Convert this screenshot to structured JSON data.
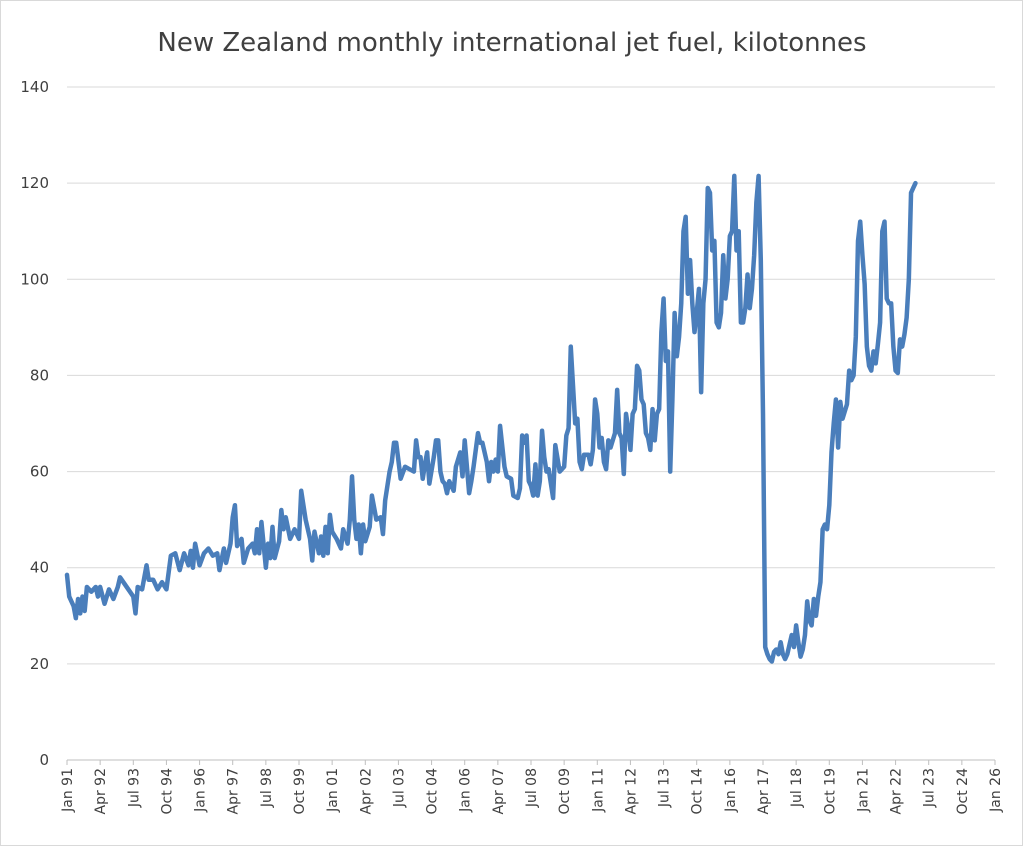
{
  "chart_data": {
    "type": "line",
    "title": "New Zealand monthly international jet fuel, kilotonnes",
    "xlabel": "",
    "ylabel": "",
    "ylim": [
      0,
      140
    ],
    "y_ticks": [
      0,
      20,
      40,
      60,
      80,
      100,
      120,
      140
    ],
    "x_tick_labels": [
      "Jan 91",
      "Apr 92",
      "Jul 93",
      "Oct 94",
      "Jan 96",
      "Apr 97",
      "Jul 98",
      "Oct 99",
      "Jan 01",
      "Apr 02",
      "Jul 03",
      "Oct 04",
      "Jan 06",
      "Apr 07",
      "Jul 08",
      "Oct 09",
      "Jan 11",
      "Apr 12",
      "Jul 13",
      "Oct 14",
      "Jan 16",
      "Apr 17",
      "Jul 18",
      "Oct 19",
      "Jan 21",
      "Apr 22",
      "Jul 23",
      "Oct 24",
      "Jan 26"
    ],
    "x_start": "Jan 91",
    "x_end": "Jan 26",
    "legend": "none",
    "grid": "horizontal",
    "series": [
      {
        "name": "International jet fuel",
        "color": "#4a7ebb",
        "anchors": [
          [
            0,
            38.5
          ],
          [
            1,
            34
          ],
          [
            3,
            32
          ],
          [
            4,
            29.5
          ],
          [
            5,
            33.5
          ],
          [
            6,
            30.5
          ],
          [
            7,
            34
          ],
          [
            8,
            31
          ],
          [
            9,
            36
          ],
          [
            11,
            35
          ],
          [
            13,
            36
          ],
          [
            14,
            34
          ],
          [
            15,
            36
          ],
          [
            17,
            32.5
          ],
          [
            19,
            35.5
          ],
          [
            21,
            33.5
          ],
          [
            23,
            36
          ],
          [
            24,
            38
          ],
          [
            27,
            36
          ],
          [
            30,
            34
          ],
          [
            31,
            30.5
          ],
          [
            32,
            36
          ],
          [
            34,
            35.5
          ],
          [
            36,
            40.5
          ],
          [
            37,
            37.5
          ],
          [
            39,
            37.5
          ],
          [
            41,
            35.5
          ],
          [
            43,
            37
          ],
          [
            45,
            35.5
          ],
          [
            47,
            42.5
          ],
          [
            49,
            43
          ],
          [
            51,
            39.5
          ],
          [
            53,
            43
          ],
          [
            55,
            40.5
          ],
          [
            56,
            43.5
          ],
          [
            57,
            40
          ],
          [
            58,
            45
          ],
          [
            60,
            40.5
          ],
          [
            62,
            43
          ],
          [
            64,
            44
          ],
          [
            66,
            42.5
          ],
          [
            68,
            43
          ],
          [
            69,
            39.5
          ],
          [
            71,
            44
          ],
          [
            72,
            41
          ],
          [
            74,
            45
          ],
          [
            75,
            50.5
          ],
          [
            76,
            53
          ],
          [
            77,
            44.5
          ],
          [
            79,
            46
          ],
          [
            80,
            41
          ],
          [
            82,
            44
          ],
          [
            84,
            45
          ],
          [
            85,
            43
          ],
          [
            86,
            48
          ],
          [
            87,
            43
          ],
          [
            88,
            49.5
          ],
          [
            90,
            40
          ],
          [
            91,
            45
          ],
          [
            92,
            42
          ],
          [
            93,
            48.5
          ],
          [
            94,
            42
          ],
          [
            96,
            45.5
          ],
          [
            97,
            52
          ],
          [
            98,
            48
          ],
          [
            99,
            50.5
          ],
          [
            101,
            46
          ],
          [
            103,
            48
          ],
          [
            105,
            46
          ],
          [
            106,
            56
          ],
          [
            108,
            50
          ],
          [
            110,
            46
          ],
          [
            111,
            41.5
          ],
          [
            112,
            47.5
          ],
          [
            114,
            43
          ],
          [
            115,
            46.5
          ],
          [
            116,
            42.5
          ],
          [
            117,
            48.5
          ],
          [
            118,
            43
          ],
          [
            119,
            51
          ],
          [
            120,
            47.5
          ],
          [
            122,
            46
          ],
          [
            124,
            44
          ],
          [
            125,
            48
          ],
          [
            127,
            45
          ],
          [
            128,
            50
          ],
          [
            129,
            59
          ],
          [
            130,
            50
          ],
          [
            131,
            46
          ],
          [
            132,
            49
          ],
          [
            133,
            43
          ],
          [
            134,
            49
          ],
          [
            135,
            45.5
          ],
          [
            137,
            48.5
          ],
          [
            138,
            55
          ],
          [
            140,
            50
          ],
          [
            142,
            50.5
          ],
          [
            143,
            47
          ],
          [
            144,
            54
          ],
          [
            146,
            60
          ],
          [
            147,
            62
          ],
          [
            148,
            66
          ],
          [
            149,
            66
          ],
          [
            151,
            58.5
          ],
          [
            153,
            61
          ],
          [
            155,
            60.5
          ],
          [
            157,
            60
          ],
          [
            158,
            66.5
          ],
          [
            159,
            63
          ],
          [
            160,
            63
          ],
          [
            161,
            58.5
          ],
          [
            162,
            61.5
          ],
          [
            163,
            64
          ],
          [
            164,
            57.5
          ],
          [
            166,
            63
          ],
          [
            167,
            66.5
          ],
          [
            168,
            66.5
          ],
          [
            169,
            60
          ],
          [
            170,
            58
          ],
          [
            171,
            57.5
          ],
          [
            172,
            55.5
          ],
          [
            173,
            58
          ],
          [
            174,
            57
          ],
          [
            175,
            56
          ],
          [
            176,
            61
          ],
          [
            178,
            64
          ],
          [
            179,
            59
          ],
          [
            180,
            66.5
          ],
          [
            182,
            55.5
          ],
          [
            183,
            58
          ],
          [
            184,
            61
          ],
          [
            186,
            68
          ],
          [
            187,
            66
          ],
          [
            188,
            66
          ],
          [
            190,
            62
          ],
          [
            191,
            58
          ],
          [
            192,
            62
          ],
          [
            193,
            60
          ],
          [
            194,
            62.5
          ],
          [
            195,
            60
          ],
          [
            196,
            69.5
          ],
          [
            198,
            61
          ],
          [
            199,
            59
          ],
          [
            201,
            58.5
          ],
          [
            202,
            55
          ],
          [
            204,
            54.5
          ],
          [
            205,
            56.5
          ],
          [
            206,
            67.5
          ],
          [
            207,
            66
          ],
          [
            208,
            67.5
          ],
          [
            209,
            58
          ],
          [
            210,
            57
          ],
          [
            211,
            55
          ],
          [
            212,
            61.5
          ],
          [
            213,
            55
          ],
          [
            214,
            58
          ],
          [
            215,
            68.5
          ],
          [
            216,
            63
          ],
          [
            217,
            60
          ],
          [
            218,
            60.5
          ],
          [
            219,
            57.5
          ],
          [
            220,
            54.5
          ],
          [
            221,
            65.5
          ],
          [
            223,
            60
          ],
          [
            225,
            61
          ],
          [
            226,
            67.5
          ],
          [
            227,
            69
          ],
          [
            228,
            86
          ],
          [
            229,
            78
          ],
          [
            230,
            70
          ],
          [
            231,
            71
          ],
          [
            232,
            62
          ],
          [
            233,
            60.5
          ],
          [
            234,
            63.5
          ],
          [
            236,
            63.5
          ],
          [
            237,
            61.5
          ],
          [
            238,
            64.5
          ],
          [
            239,
            75
          ],
          [
            240,
            72
          ],
          [
            241,
            65
          ],
          [
            242,
            67
          ],
          [
            243,
            62
          ],
          [
            244,
            60.5
          ],
          [
            245,
            66.5
          ],
          [
            246,
            65
          ],
          [
            248,
            68
          ],
          [
            249,
            77
          ],
          [
            250,
            68
          ],
          [
            251,
            67
          ],
          [
            252,
            59.5
          ],
          [
            253,
            72
          ],
          [
            254,
            69
          ],
          [
            255,
            64.5
          ],
          [
            256,
            72
          ],
          [
            257,
            73
          ],
          [
            258,
            82
          ],
          [
            259,
            81
          ],
          [
            260,
            75
          ],
          [
            261,
            74
          ],
          [
            262,
            68
          ],
          [
            263,
            67
          ],
          [
            264,
            64.5
          ],
          [
            265,
            73
          ],
          [
            266,
            66.5
          ],
          [
            267,
            72
          ],
          [
            268,
            73
          ],
          [
            269,
            89
          ],
          [
            270,
            96
          ],
          [
            271,
            83
          ],
          [
            272,
            85
          ],
          [
            273,
            60
          ],
          [
            274,
            75
          ],
          [
            275,
            93
          ],
          [
            276,
            84
          ],
          [
            277,
            88
          ],
          [
            278,
            95
          ],
          [
            279,
            110
          ],
          [
            280,
            113
          ],
          [
            281,
            97
          ],
          [
            282,
            104
          ],
          [
            283,
            95
          ],
          [
            284,
            89
          ],
          [
            285,
            93
          ],
          [
            286,
            98
          ],
          [
            287,
            76.5
          ],
          [
            288,
            95
          ],
          [
            289,
            100
          ],
          [
            290,
            119
          ],
          [
            291,
            118
          ],
          [
            292,
            106
          ],
          [
            293,
            108
          ],
          [
            294,
            91
          ],
          [
            295,
            90
          ],
          [
            296,
            93
          ],
          [
            297,
            105
          ],
          [
            298,
            96
          ],
          [
            299,
            100
          ],
          [
            300,
            109
          ],
          [
            301,
            110
          ],
          [
            302,
            121.5
          ],
          [
            303,
            106
          ],
          [
            304,
            110
          ],
          [
            305,
            91
          ],
          [
            306,
            91
          ],
          [
            307,
            94
          ],
          [
            308,
            101
          ],
          [
            309,
            94
          ],
          [
            310,
            98
          ],
          [
            311,
            105
          ],
          [
            312,
            116
          ],
          [
            313,
            121.5
          ],
          [
            314,
            104
          ],
          [
            315,
            72
          ],
          [
            316,
            23.5
          ],
          [
            317,
            22
          ],
          [
            318,
            21
          ],
          [
            319,
            20.5
          ],
          [
            320,
            22.5
          ],
          [
            321,
            23
          ],
          [
            322,
            22
          ],
          [
            323,
            24.5
          ],
          [
            324,
            22
          ],
          [
            325,
            21
          ],
          [
            326,
            22
          ],
          [
            327,
            24
          ],
          [
            328,
            26
          ],
          [
            329,
            23.5
          ],
          [
            330,
            28
          ],
          [
            331,
            24.5
          ],
          [
            332,
            21.5
          ],
          [
            333,
            23
          ],
          [
            334,
            26
          ],
          [
            335,
            33
          ],
          [
            336,
            29
          ],
          [
            337,
            28
          ],
          [
            338,
            33.5
          ],
          [
            339,
            30
          ],
          [
            340,
            34
          ],
          [
            341,
            37
          ],
          [
            342,
            48
          ],
          [
            343,
            49
          ],
          [
            344,
            48
          ],
          [
            345,
            53
          ],
          [
            346,
            64
          ],
          [
            347,
            70
          ],
          [
            348,
            75
          ],
          [
            349,
            65
          ],
          [
            350,
            74.5
          ],
          [
            351,
            71
          ],
          [
            352,
            72.5
          ],
          [
            353,
            74
          ],
          [
            354,
            81
          ],
          [
            355,
            79
          ],
          [
            356,
            80
          ],
          [
            357,
            88
          ],
          [
            358,
            108
          ],
          [
            359,
            112
          ],
          [
            360,
            105
          ],
          [
            361,
            99
          ],
          [
            362,
            86
          ],
          [
            363,
            82
          ],
          [
            364,
            81
          ],
          [
            365,
            85
          ],
          [
            366,
            82.5
          ],
          [
            367,
            86.5
          ],
          [
            368,
            91
          ],
          [
            369,
            110
          ],
          [
            370,
            112
          ],
          [
            371,
            96
          ],
          [
            372,
            95
          ],
          [
            373,
            95
          ],
          [
            374,
            86
          ],
          [
            375,
            81
          ],
          [
            376,
            80.5
          ],
          [
            377,
            87.5
          ],
          [
            378,
            86
          ],
          [
            379,
            88.5
          ],
          [
            380,
            92
          ],
          [
            381,
            100
          ],
          [
            382,
            118
          ],
          [
            383,
            119
          ],
          [
            384,
            120
          ]
        ]
      }
    ]
  }
}
